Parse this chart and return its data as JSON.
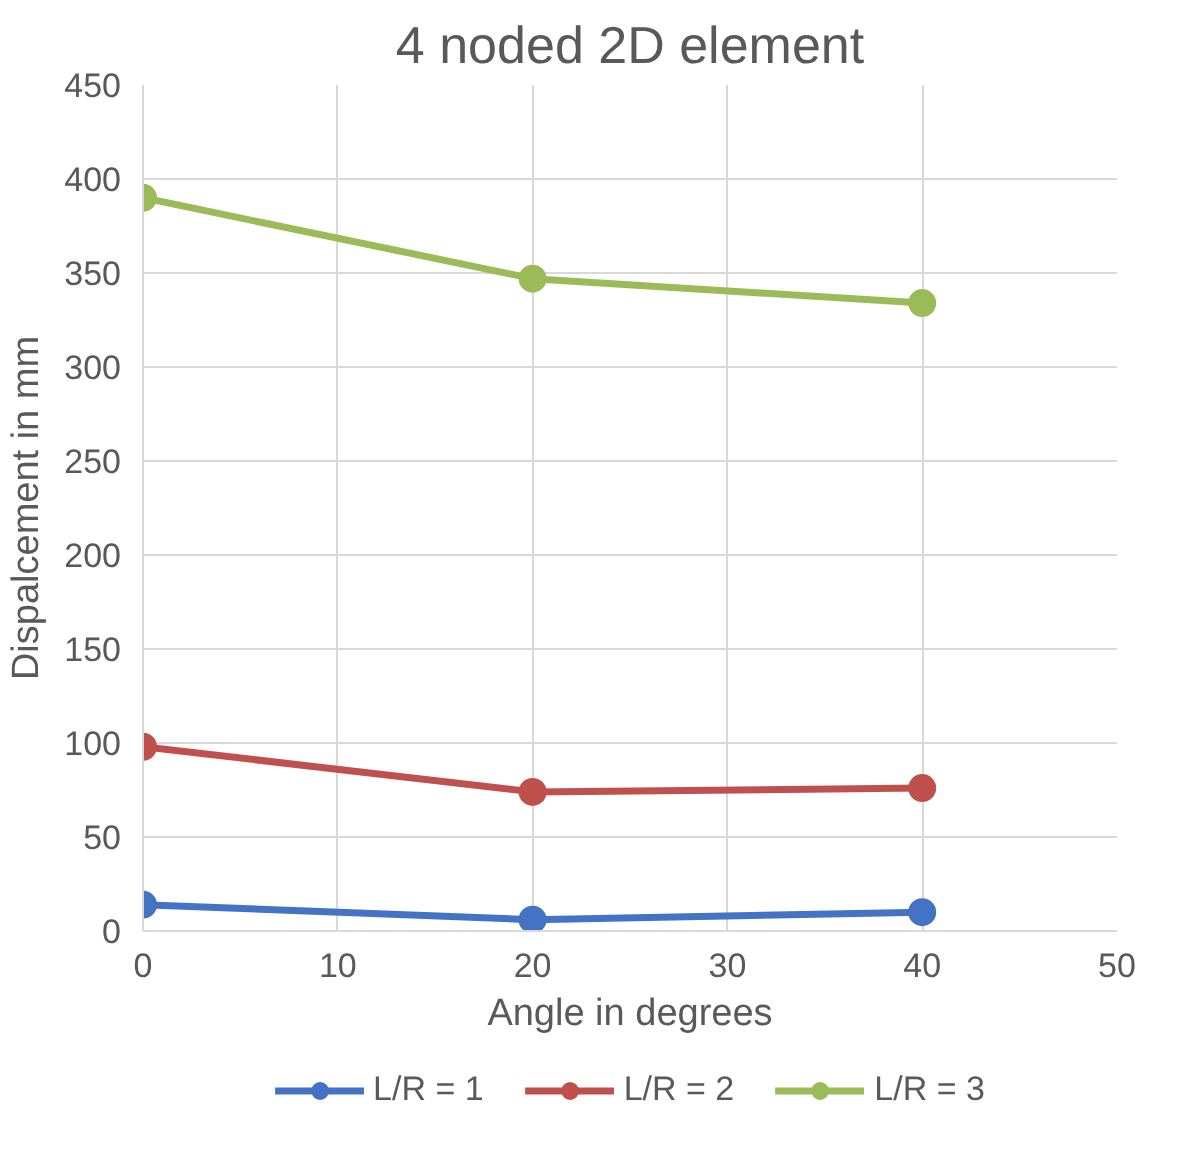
{
  "chart_data": {
    "type": "line",
    "title": "4 noded 2D element",
    "xlabel": "Angle in degrees",
    "ylabel": "Dispalcement in mm",
    "x": [
      0,
      20,
      40
    ],
    "series": [
      {
        "name": "L/R = 1",
        "color": "#4472c4",
        "values": [
          14,
          6,
          10
        ]
      },
      {
        "name": "L/R = 2",
        "color": "#c0504d",
        "values": [
          98,
          74,
          76
        ]
      },
      {
        "name": "L/R = 3",
        "color": "#9bbb59",
        "values": [
          390,
          347,
          334
        ]
      }
    ],
    "xlim": [
      0,
      50
    ],
    "xticks": [
      0,
      10,
      20,
      30,
      40,
      50
    ],
    "ylim": [
      0,
      450
    ],
    "yticks": [
      0,
      50,
      100,
      150,
      200,
      250,
      300,
      350,
      400,
      450
    ],
    "grid": true,
    "legend": "bottom",
    "marker": "circle",
    "line_style": "solid"
  }
}
